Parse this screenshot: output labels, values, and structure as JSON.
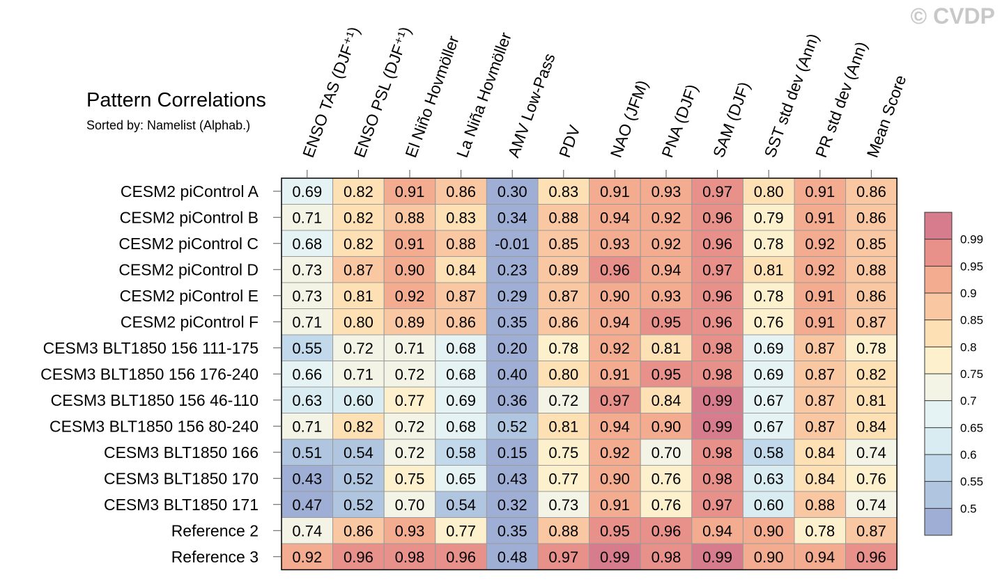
{
  "watermark": "© CVDP",
  "chart_data": {
    "type": "heatmap",
    "title": "Pattern Correlations",
    "subtitle": "Sorted by: Namelist (Alphab.)",
    "columns": [
      "ENSO TAS (DJF⁺¹)",
      "ENSO PSL (DJF⁺¹)",
      "El Niño Hovmöller",
      "La Niña Hovmöller",
      "AMV Low-Pass",
      "PDV",
      "NAO (JFM)",
      "PNA (DJF)",
      "SAM (DJF)",
      "SST std dev (Ann)",
      "PR std dev (Ann)",
      "Mean Score"
    ],
    "rows": [
      "CESM2 piControl A",
      "CESM2 piControl B",
      "CESM2 piControl C",
      "CESM2 piControl D",
      "CESM2 piControl E",
      "CESM2 piControl F",
      "CESM3 BLT1850 156 111-175",
      "CESM3 BLT1850 156 176-240",
      "CESM3 BLT1850 156 46-110",
      "CESM3 BLT1850 156 80-240",
      "CESM3 BLT1850 166",
      "CESM3 BLT1850 170",
      "CESM3 BLT1850 171",
      "Reference 2",
      "Reference 3"
    ],
    "values": [
      [
        "0.69",
        "0.82",
        "0.91",
        "0.86",
        "0.30",
        "0.83",
        "0.91",
        "0.93",
        "0.97",
        "0.80",
        "0.91",
        "0.86"
      ],
      [
        "0.71",
        "0.82",
        "0.88",
        "0.83",
        "0.34",
        "0.88",
        "0.94",
        "0.92",
        "0.96",
        "0.79",
        "0.91",
        "0.86"
      ],
      [
        "0.68",
        "0.82",
        "0.91",
        "0.88",
        "-0.01",
        "0.85",
        "0.93",
        "0.92",
        "0.96",
        "0.78",
        "0.92",
        "0.85"
      ],
      [
        "0.73",
        "0.87",
        "0.90",
        "0.84",
        "0.23",
        "0.89",
        "0.96",
        "0.94",
        "0.97",
        "0.81",
        "0.92",
        "0.88"
      ],
      [
        "0.73",
        "0.81",
        "0.92",
        "0.87",
        "0.29",
        "0.87",
        "0.90",
        "0.93",
        "0.96",
        "0.78",
        "0.91",
        "0.86"
      ],
      [
        "0.71",
        "0.80",
        "0.89",
        "0.86",
        "0.35",
        "0.86",
        "0.94",
        "0.95",
        "0.96",
        "0.76",
        "0.91",
        "0.87"
      ],
      [
        "0.55",
        "0.72",
        "0.71",
        "0.68",
        "0.20",
        "0.78",
        "0.92",
        "0.81",
        "0.98",
        "0.69",
        "0.87",
        "0.78"
      ],
      [
        "0.66",
        "0.71",
        "0.72",
        "0.68",
        "0.40",
        "0.80",
        "0.91",
        "0.95",
        "0.98",
        "0.69",
        "0.87",
        "0.82"
      ],
      [
        "0.63",
        "0.60",
        "0.77",
        "0.69",
        "0.36",
        "0.72",
        "0.97",
        "0.84",
        "0.99",
        "0.67",
        "0.87",
        "0.81"
      ],
      [
        "0.71",
        "0.82",
        "0.72",
        "0.68",
        "0.52",
        "0.81",
        "0.94",
        "0.90",
        "0.99",
        "0.67",
        "0.87",
        "0.84"
      ],
      [
        "0.51",
        "0.54",
        "0.72",
        "0.58",
        "0.15",
        "0.75",
        "0.92",
        "0.70",
        "0.98",
        "0.58",
        "0.84",
        "0.74"
      ],
      [
        "0.43",
        "0.52",
        "0.75",
        "0.65",
        "0.43",
        "0.77",
        "0.90",
        "0.76",
        "0.98",
        "0.63",
        "0.84",
        "0.76"
      ],
      [
        "0.47",
        "0.52",
        "0.70",
        "0.54",
        "0.32",
        "0.73",
        "0.91",
        "0.76",
        "0.97",
        "0.60",
        "0.88",
        "0.74"
      ],
      [
        "0.74",
        "0.86",
        "0.93",
        "0.77",
        "0.35",
        "0.88",
        "0.95",
        "0.96",
        "0.94",
        "0.90",
        "0.78",
        "0.87"
      ],
      [
        "0.92",
        "0.96",
        "0.98",
        "0.96",
        "0.48",
        "0.97",
        "0.99",
        "0.98",
        "0.99",
        "0.90",
        "0.94",
        "0.96"
      ]
    ],
    "colorbar": {
      "levels": [
        0.5,
        0.55,
        0.6,
        0.65,
        0.7,
        0.75,
        0.8,
        0.85,
        0.9,
        0.95,
        0.99
      ],
      "tick_labels": [
        "0.5",
        "0.55",
        "0.6",
        "0.65",
        "0.7",
        "0.75",
        "0.8",
        "0.85",
        "0.9",
        "0.95",
        "0.99"
      ],
      "colors": [
        "#9eaed5",
        "#b0c6e0",
        "#c1d9ea",
        "#d9ecf1",
        "#e6f3f5",
        "#f3f3e6",
        "#fcf1cc",
        "#fde1b5",
        "#f9c7a1",
        "#f3ac8f",
        "#e8908a",
        "#d77c8c"
      ]
    }
  }
}
